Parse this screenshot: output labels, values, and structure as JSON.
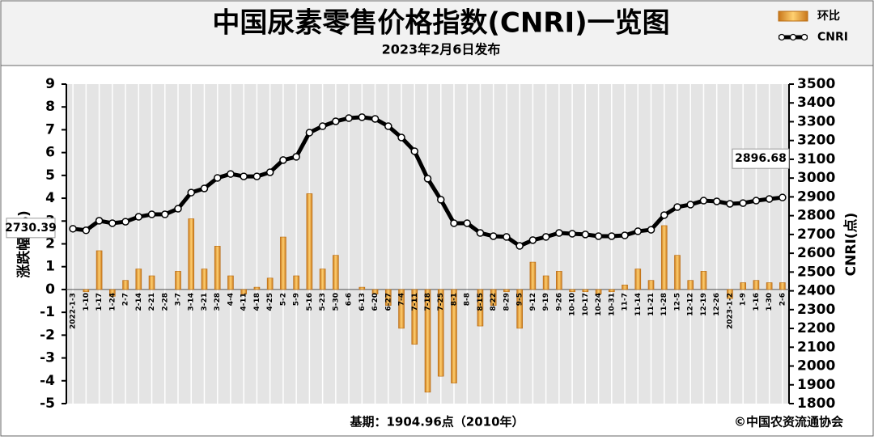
{
  "chart_data": {
    "type": "combo",
    "title": "中国尿素零售价格指数(CNRI)一览图",
    "subtitle": "2023年2月6日发布",
    "categories": [
      "2022-1-3",
      "1-10",
      "1-17",
      "1-24",
      "2-7",
      "2-14",
      "2-21",
      "2-28",
      "3-7",
      "3-14",
      "3-21",
      "3-28",
      "4-4",
      "4-11",
      "4-18",
      "4-25",
      "5-2",
      "5-9",
      "5-16",
      "5-23",
      "5-30",
      "6-6",
      "6-13",
      "6-20",
      "6-27",
      "7-4",
      "7-11",
      "7-18",
      "7-25",
      "8-1",
      "8-8",
      "8-15",
      "8-22",
      "8-29",
      "9-5",
      "9-12",
      "9-19",
      "9-26",
      "10-10",
      "10-17",
      "10-24",
      "10-31",
      "11-7",
      "11-14",
      "11-21",
      "11-28",
      "12-5",
      "12-12",
      "12-19",
      "12-26",
      "2023-1-2",
      "1-9",
      "1-16",
      "1-30",
      "2-6"
    ],
    "series": [
      {
        "name": "环比",
        "color": "#f0a830",
        "values": [
          0,
          -0.1,
          1.7,
          -0.3,
          0.4,
          0.9,
          0.6,
          0,
          0.8,
          3.1,
          0.9,
          1.9,
          0.6,
          -0.2,
          0.1,
          0.5,
          2.3,
          0.6,
          4.2,
          0.9,
          1.5,
          0,
          0.1,
          -0.2,
          -0.7,
          -1.7,
          -2.4,
          -4.5,
          -3.8,
          -4.1,
          0,
          -1.6,
          -0.7,
          -0.1,
          -1.7,
          1.2,
          0.6,
          0.8,
          -0.1,
          -0.1,
          -0.2,
          -0.1,
          0.2,
          0.9,
          0.4,
          2.8,
          1.5,
          0.4,
          0.8,
          0,
          -0.4,
          0.3,
          0.4,
          0.3,
          0.3
        ]
      },
      {
        "name": "CNRI",
        "color": "#000000",
        "axis": "y2",
        "values": [
          2730.39,
          2722,
          2773,
          2760,
          2768,
          2794,
          2807,
          2807,
          2837,
          2923,
          2945,
          3001,
          3022,
          3009,
          3009,
          3031,
          3096,
          3113,
          3242,
          3276,
          3302,
          3319,
          3324,
          3315,
          3276,
          3216,
          3143,
          2997,
          2885,
          2760,
          2760,
          2708,
          2691,
          2687,
          2639,
          2670,
          2687,
          2708,
          2704,
          2700,
          2691,
          2691,
          2695,
          2717,
          2725,
          2803,
          2846,
          2859,
          2880,
          2876,
          2863,
          2867,
          2880,
          2889,
          2896.68
        ]
      }
    ],
    "ylim": [
      -5,
      9
    ],
    "yticks": [
      -5,
      -4,
      -3,
      -2,
      -1,
      0,
      1,
      2,
      3,
      4,
      5,
      6,
      7,
      8,
      9
    ],
    "y2lim": [
      1800,
      3500
    ],
    "y2ticks": [
      1800,
      1900,
      2000,
      2100,
      2200,
      2300,
      2400,
      2500,
      2600,
      2700,
      2800,
      2900,
      3000,
      3100,
      3200,
      3300,
      3400,
      3500
    ],
    "ylabel": "涨跌幅(%)",
    "y2label": "CNRI(点)",
    "legend": "top-right",
    "grid": true,
    "base_note": "基期：1904.96点（2010年）",
    "source": "©中国农资流通协会"
  }
}
